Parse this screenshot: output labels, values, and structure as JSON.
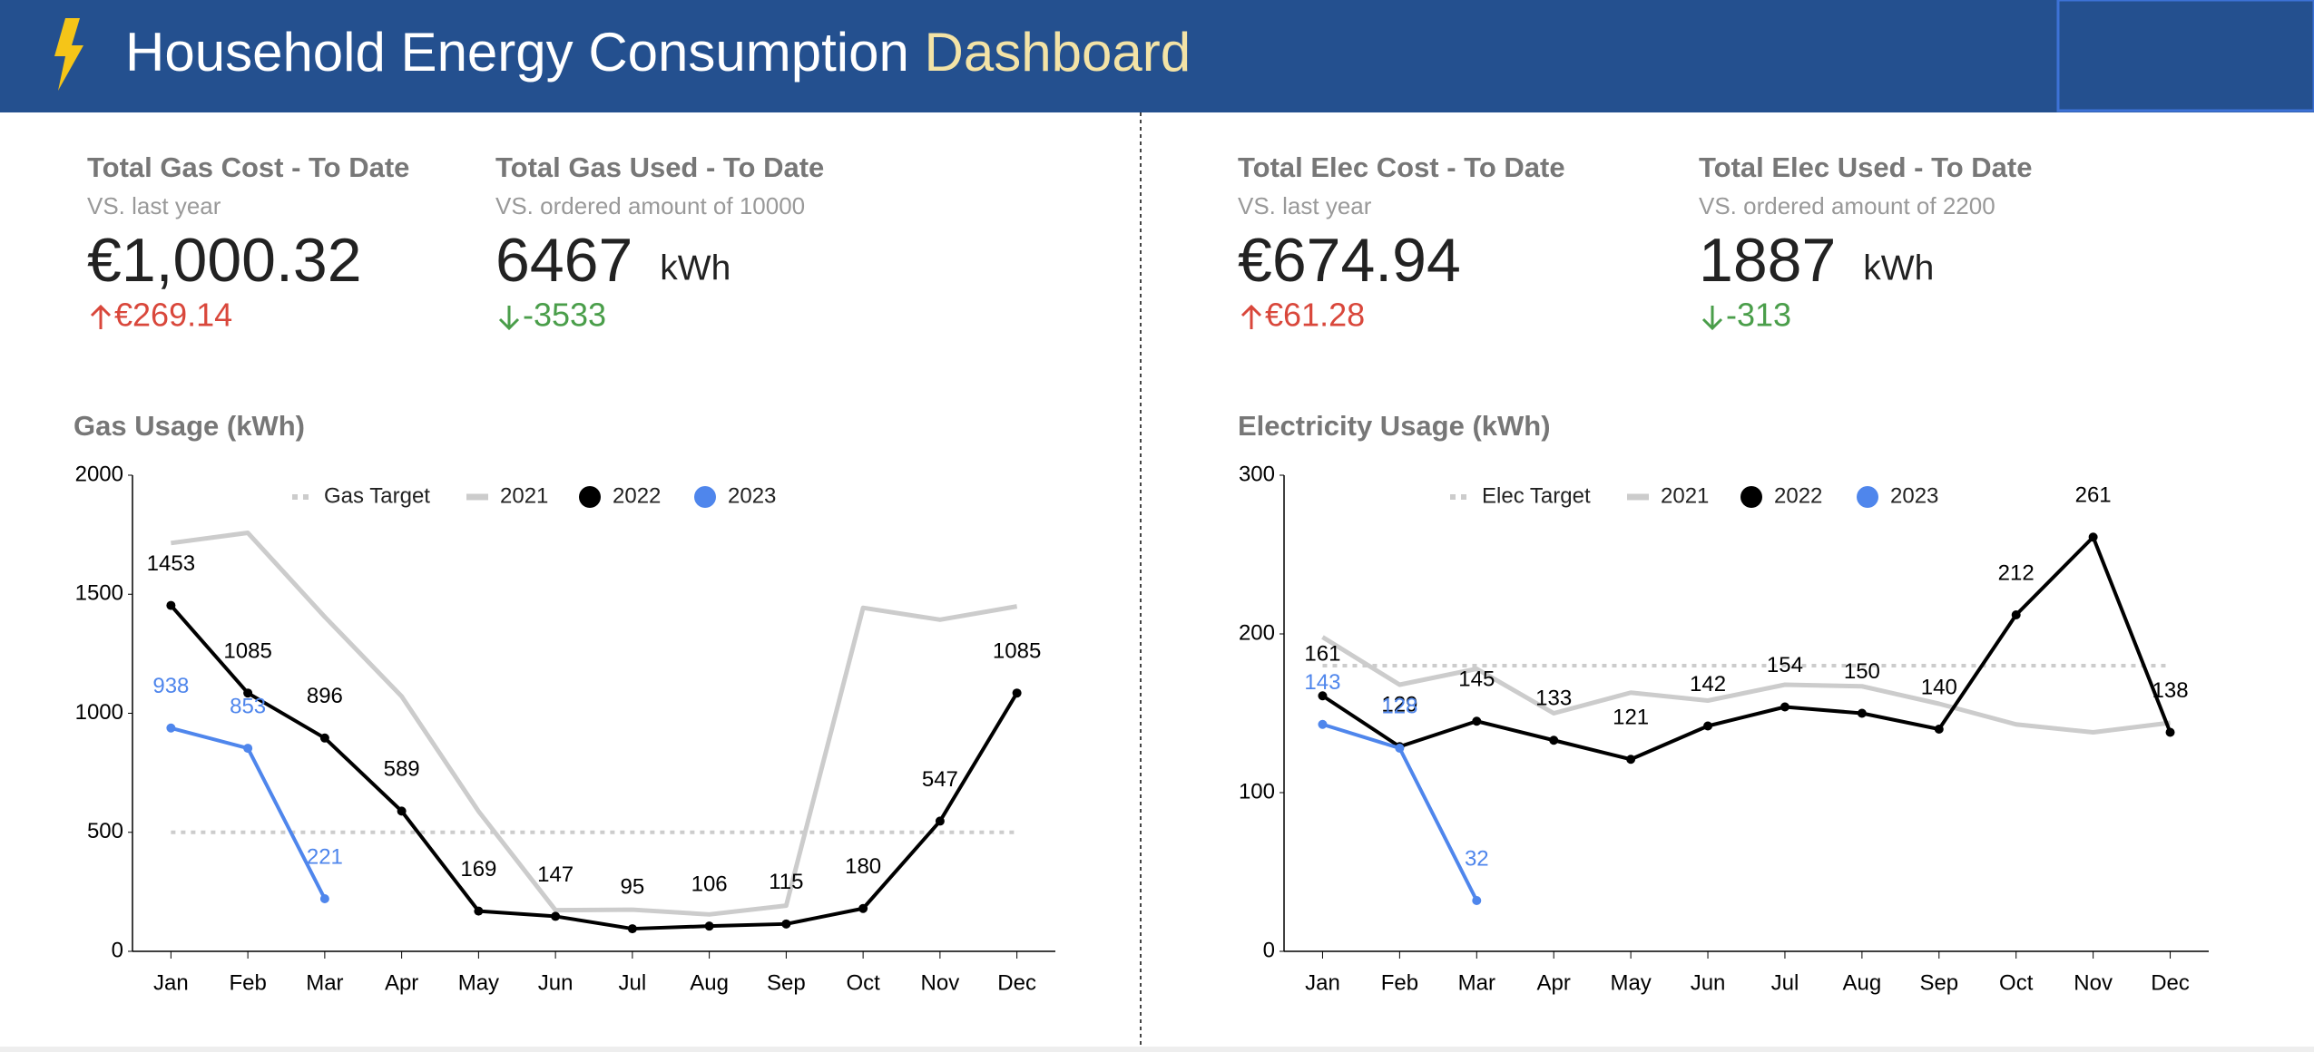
{
  "header": {
    "title": "Household Energy Consumption",
    "title_accent": "Dashboard"
  },
  "kpis": [
    {
      "title": "Total Gas Cost - To Date",
      "subtitle": "VS. last year",
      "value": "€1,000.32",
      "delta": "€269.14",
      "direction": "up",
      "delta_color": "#d9473b"
    },
    {
      "title": "Total Gas Used - To Date",
      "subtitle": "VS. ordered amount of 10000",
      "value": "6467",
      "unit": "kWh",
      "delta": "-3533",
      "direction": "down",
      "delta_color": "#4a9e4a"
    },
    {
      "title": "Total Elec Cost - To Date",
      "subtitle": "VS. last year",
      "value": "€674.94",
      "delta": "€61.28",
      "direction": "up",
      "delta_color": "#d9473b"
    },
    {
      "title": "Total Elec Used - To Date",
      "subtitle": "VS. ordered amount of 2200",
      "value": "1887",
      "unit": "kWh",
      "delta": "-313",
      "direction": "down",
      "delta_color": "#4a9e4a"
    }
  ],
  "chart_data": [
    {
      "type": "line",
      "title": "Gas Usage (kWh)",
      "categories": [
        "Jan",
        "Feb",
        "Mar",
        "Apr",
        "May",
        "Jun",
        "Jul",
        "Aug",
        "Sep",
        "Oct",
        "Nov",
        "Dec"
      ],
      "ylim": [
        0,
        2000
      ],
      "yticks": [
        0,
        500,
        1000,
        1500,
        2000
      ],
      "series": [
        {
          "name": "Gas Target",
          "color": "#cccccc",
          "dashed": true,
          "values": [
            500,
            500,
            500,
            500,
            500,
            500,
            500,
            500,
            500,
            500,
            500,
            500
          ]
        },
        {
          "name": "2021",
          "color": "#cccccc",
          "values": [
            1715,
            1758,
            1405,
            1071,
            588,
            173,
            175,
            155,
            192,
            1443,
            1393,
            1449
          ]
        },
        {
          "name": "2022",
          "color": "#000000",
          "markers": true,
          "labels": true,
          "values": [
            1453,
            1085,
            896,
            589,
            169,
            147,
            95,
            106,
            115,
            180,
            547,
            1085
          ]
        },
        {
          "name": "2023",
          "color": "#4f86ec",
          "markers": true,
          "labels": true,
          "values": [
            938,
            853,
            221,
            null,
            null,
            null,
            null,
            null,
            null,
            null,
            null,
            null
          ]
        }
      ]
    },
    {
      "type": "line",
      "title": "Electricity Usage (kWh)",
      "categories": [
        "Jan",
        "Feb",
        "Mar",
        "Apr",
        "May",
        "Jun",
        "Jul",
        "Aug",
        "Sep",
        "Oct",
        "Nov",
        "Dec"
      ],
      "ylim": [
        0,
        300
      ],
      "yticks": [
        0,
        100,
        200,
        300
      ],
      "series": [
        {
          "name": "Elec Target",
          "color": "#cccccc",
          "dashed": true,
          "values": [
            180,
            180,
            180,
            180,
            180,
            180,
            180,
            180,
            180,
            180,
            180,
            180
          ]
        },
        {
          "name": "2021",
          "color": "#cccccc",
          "values": [
            198,
            168,
            178,
            150,
            163,
            158,
            168,
            167,
            156,
            143,
            138,
            144
          ]
        },
        {
          "name": "2022",
          "color": "#000000",
          "markers": true,
          "labels": true,
          "values": [
            161,
            129,
            145,
            133,
            121,
            142,
            154,
            150,
            140,
            212,
            261,
            138
          ]
        },
        {
          "name": "2023",
          "color": "#4f86ec",
          "markers": true,
          "labels": true,
          "values": [
            143,
            128,
            32,
            null,
            null,
            null,
            null,
            null,
            null,
            null,
            null,
            null
          ]
        }
      ]
    }
  ]
}
